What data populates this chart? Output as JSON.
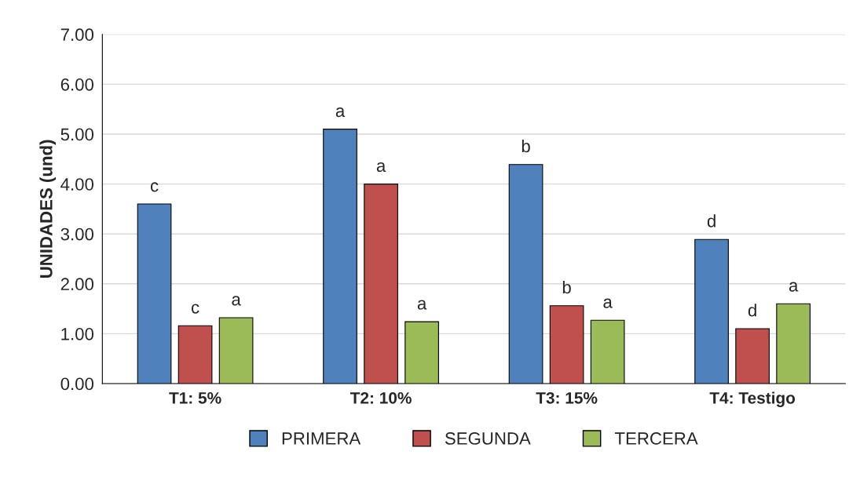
{
  "chart_data": {
    "type": "bar",
    "ylabel": "UNIDADES (und)",
    "categories": [
      "T1: 5%",
      "T2: 10%",
      "T3: 15%",
      "T4: Testigo"
    ],
    "series": [
      {
        "name": "PRIMERA",
        "color": "#4f81bd",
        "values": [
          3.6,
          5.1,
          4.39,
          2.89
        ],
        "value_labels": [
          "c",
          "a",
          "b",
          "d"
        ]
      },
      {
        "name": "SEGUNDA",
        "color": "#c0504d",
        "values": [
          1.16,
          4.0,
          1.56,
          1.1
        ],
        "value_labels": [
          "c",
          "a",
          "b",
          "d"
        ]
      },
      {
        "name": "TERCERA",
        "color": "#9bbb59",
        "values": [
          1.32,
          1.24,
          1.27,
          1.6
        ],
        "value_labels": [
          "a",
          "a",
          "a",
          "a"
        ]
      }
    ],
    "ylim": [
      0,
      7
    ],
    "yticks": [
      {
        "value": 0,
        "label": "0.00"
      },
      {
        "value": 1,
        "label": "1.00"
      },
      {
        "value": 2,
        "label": "2.00"
      },
      {
        "value": 3,
        "label": "3.00"
      },
      {
        "value": 4,
        "label": "4.00"
      },
      {
        "value": 5,
        "label": "5.00"
      },
      {
        "value": 6,
        "label": "6.00"
      },
      {
        "value": 7,
        "label": "7.00"
      }
    ],
    "grid": "y",
    "legend": "bottom"
  }
}
